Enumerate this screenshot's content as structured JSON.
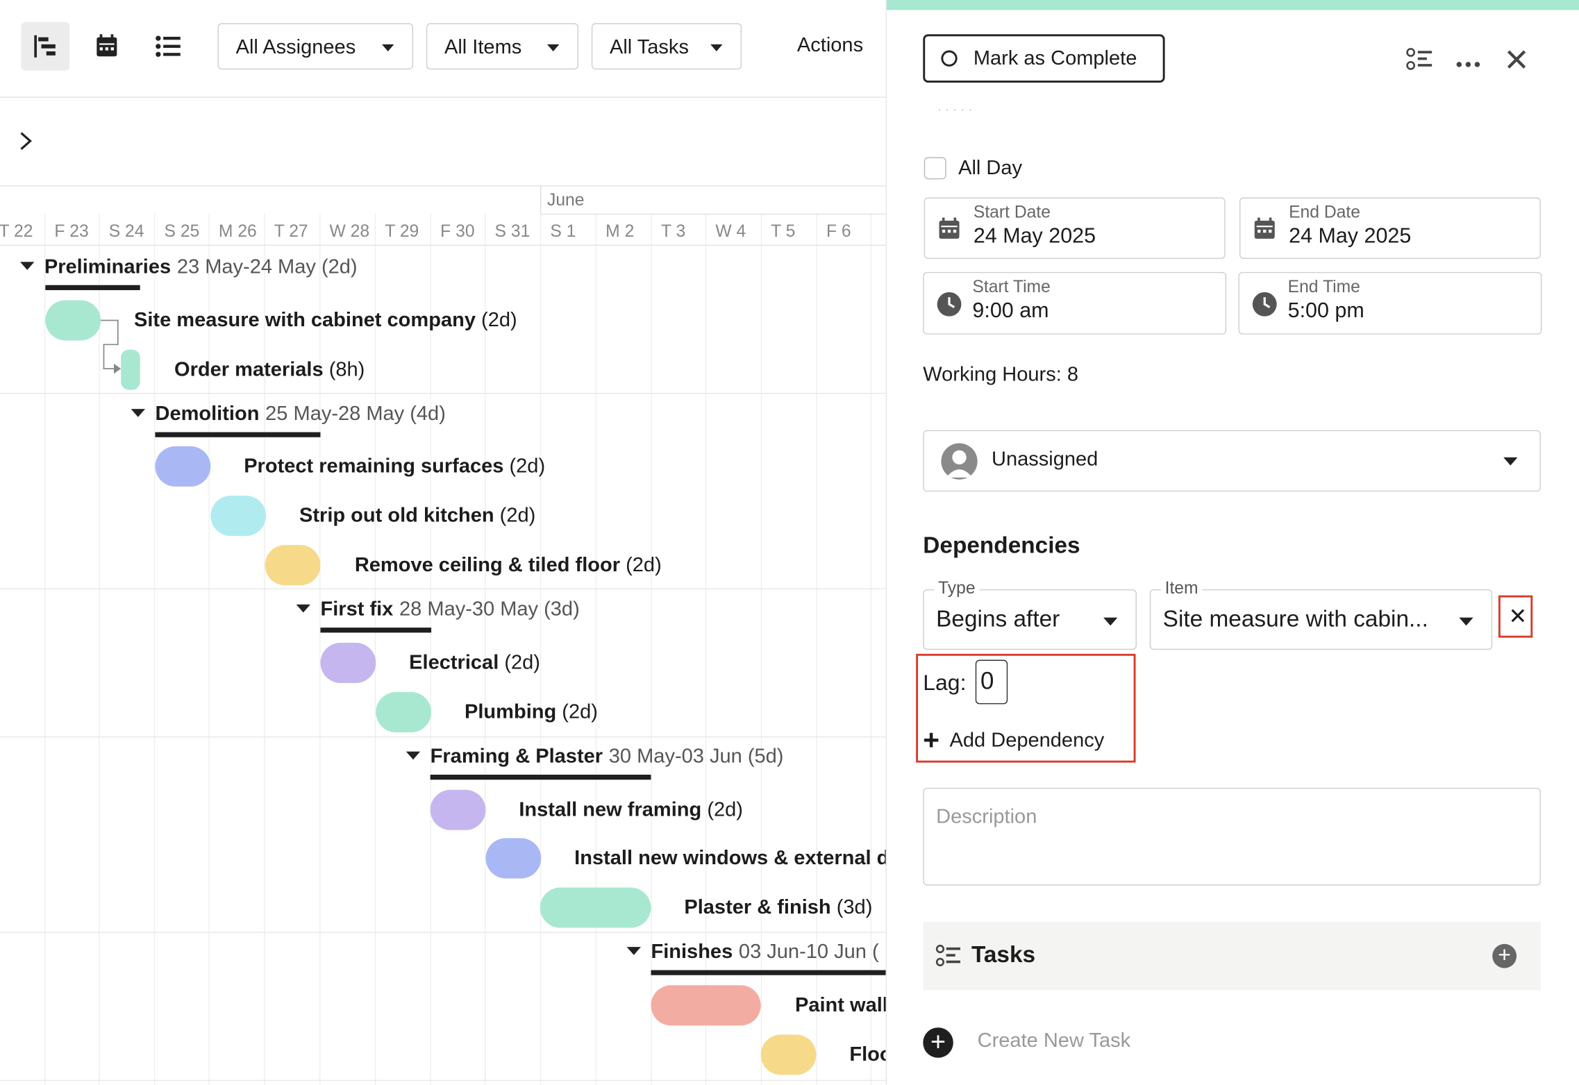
{
  "toolbar": {
    "filters": [
      "All Assignees",
      "All Items",
      "All Tasks"
    ],
    "actions_label": "Actions",
    "icons": [
      "gantt-view-icon",
      "calendar-view-icon",
      "list-view-icon"
    ]
  },
  "timeline": {
    "month_label": "June",
    "days": [
      "T 22",
      "F 23",
      "S 24",
      "S 25",
      "M 26",
      "T 27",
      "W 28",
      "T 29",
      "F 30",
      "S 31",
      "S 1",
      "M 2",
      "T 3",
      "W 4",
      "T 5",
      "F 6"
    ]
  },
  "gantt": {
    "groups": [
      {
        "name": "Preliminaries",
        "dates": "23 May-24 May (2d)"
      },
      {
        "name": "Demolition",
        "dates": "25 May-28 May (4d)"
      },
      {
        "name": "First fix",
        "dates": "28 May-30 May (3d)"
      },
      {
        "name": "Framing & Plaster",
        "dates": "30 May-03 Jun (5d)"
      },
      {
        "name": "Finishes",
        "dates": "03 Jun-10 Jun ("
      }
    ],
    "tasks": [
      {
        "name": "Site measure with cabinet company",
        "dur": "(2d)",
        "color": "#a8e8d0"
      },
      {
        "name": "Order materials",
        "dur": "(8h)",
        "color": "#a8e8d0"
      },
      {
        "name": "Protect remaining surfaces",
        "dur": "(2d)",
        "color": "#a9b8f5"
      },
      {
        "name": "Strip out old kitchen",
        "dur": "(2d)",
        "color": "#b0ecef"
      },
      {
        "name": "Remove ceiling & tiled floor",
        "dur": "(2d)",
        "color": "#f7d98a"
      },
      {
        "name": "Electrical",
        "dur": "(2d)",
        "color": "#c6b6ef"
      },
      {
        "name": "Plumbing",
        "dur": "(2d)",
        "color": "#a8e8d0"
      },
      {
        "name": "Install new framing",
        "dur": "(2d)",
        "color": "#c6b6ef"
      },
      {
        "name": "Install new windows & external d",
        "dur": "",
        "color": "#a9b8f5"
      },
      {
        "name": "Plaster & finish",
        "dur": "(3d)",
        "color": "#a8e8d0"
      },
      {
        "name": "Paint wall",
        "dur": "",
        "color": "#f2aca2"
      },
      {
        "name": "Floo",
        "dur": "",
        "color": "#f7d98a"
      }
    ]
  },
  "panel": {
    "accent": "#a8e8d0",
    "highlight": "#d93a2b",
    "mark_complete": "Mark as Complete",
    "all_day": "All Day",
    "start_date": {
      "label": "Start Date",
      "value": "24 May 2025"
    },
    "end_date": {
      "label": "End Date",
      "value": "24 May 2025"
    },
    "start_time": {
      "label": "Start Time",
      "value": "9:00 am"
    },
    "end_time": {
      "label": "End Time",
      "value": "5:00 pm"
    },
    "working_hours": "Working Hours:  8",
    "assignee": "Unassigned",
    "dependencies_title": "Dependencies",
    "dep_type": {
      "legend": "Type",
      "value": "Begins after"
    },
    "dep_item": {
      "legend": "Item",
      "value": "Site measure with cabin..."
    },
    "remove": "✕",
    "lag_label": "Lag:",
    "lag_value": "0",
    "add_dependency": "Add Dependency",
    "description_placeholder": "Description",
    "tasks_title": "Tasks",
    "create_task": "Create New Task"
  }
}
